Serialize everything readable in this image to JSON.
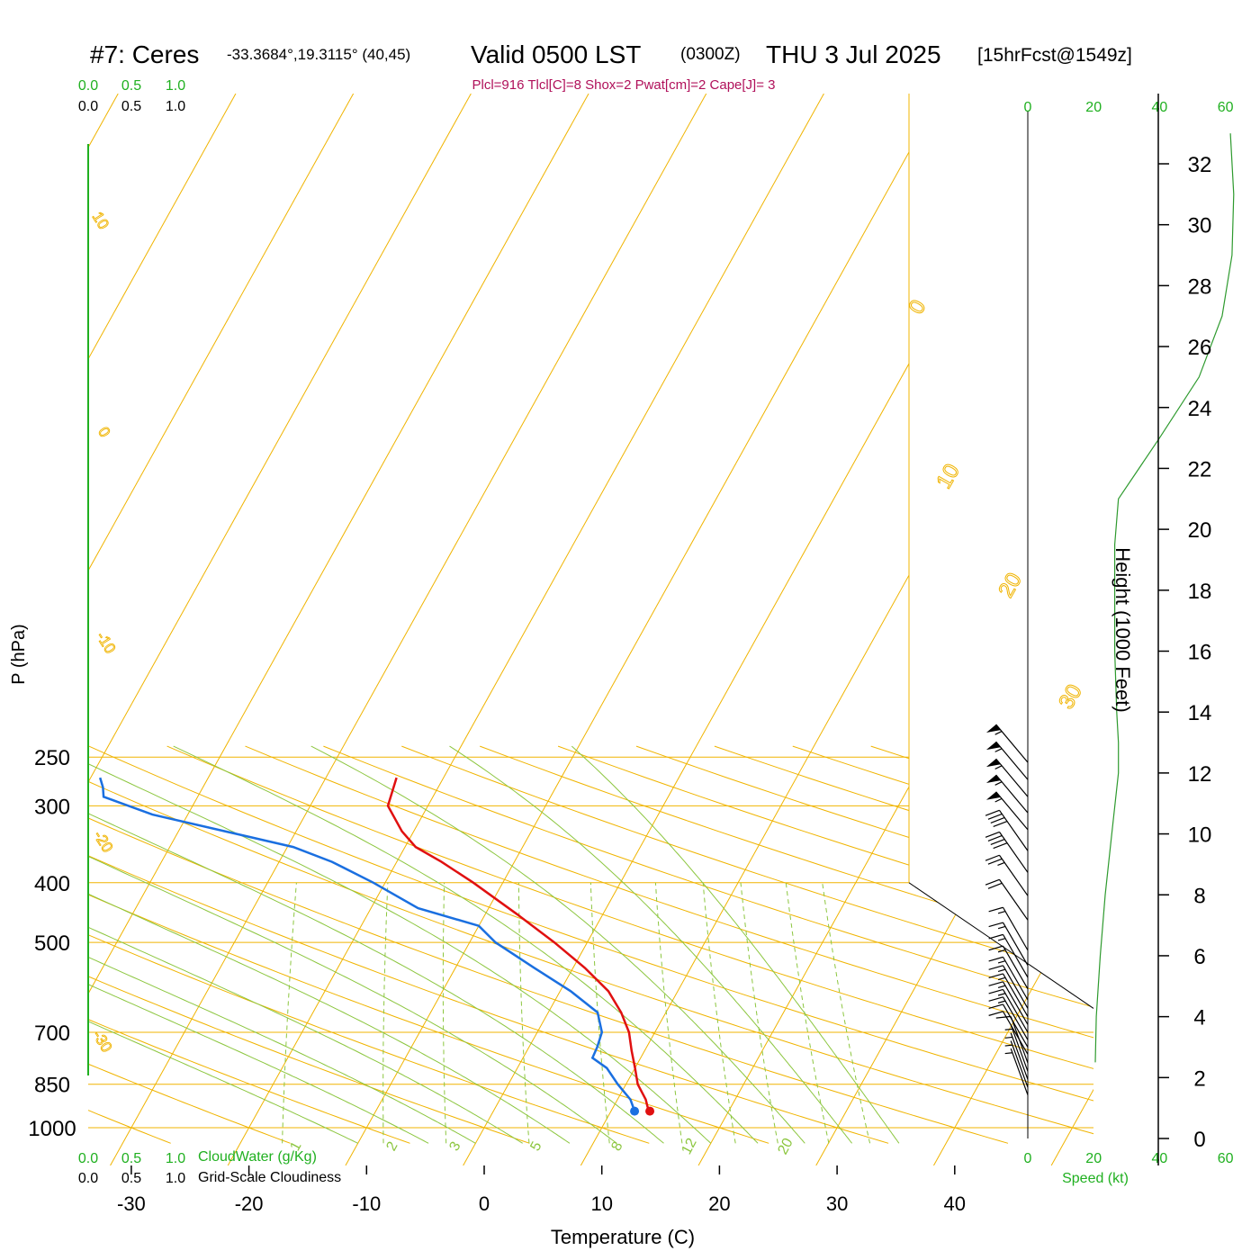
{
  "header": {
    "station": "#7: Ceres",
    "coords": "-33.3684°,19.3115° (40,45)",
    "valid": "Valid 0500 LST",
    "zulu": "(0300Z)",
    "date": "THU 3 Jul 2025",
    "forecast": "[15hrFcst@1549z]",
    "indices": "Plcl=916 Tlcl[C]=8 Shox=2 Pwat[cm]=2 Cape[J]= 3"
  },
  "colors": {
    "temperature": "#e01010",
    "dewpoint": "#1a6fe0",
    "isobar": "#f0b400",
    "isotherm": "#f0b400",
    "dry_adiabat": "#f0b400",
    "moist_adiabat": "#8cc63f",
    "mixing_ratio": "#8cc63f",
    "title_indices": "#b0105a",
    "green_text": "#20b020",
    "height_trace": "#2e9a2e"
  },
  "chart_data": {
    "type": "line",
    "title": "#7: Ceres  Valid 0500 LST (0300Z) THU 3 Jul 2025",
    "xlabel": "Temperature (C)",
    "ylabel": "P (hPa)",
    "right_axis_label": "Height (1000 Feet)",
    "x_ticks": [
      "-30",
      "-20",
      "-10",
      "0",
      "10",
      "20",
      "30",
      "40"
    ],
    "pressure_ticks": [
      "250",
      "300",
      "400",
      "500",
      "700",
      "850",
      "1000"
    ],
    "height_ticks": [
      "0",
      "2",
      "4",
      "6",
      "8",
      "10",
      "12",
      "14",
      "16",
      "18",
      "20",
      "22",
      "24",
      "26",
      "28",
      "30",
      "32"
    ],
    "isotherm_labels": [
      "0",
      "10",
      "20",
      "30"
    ],
    "dry_adiabat_labels": [
      "10",
      "0",
      "-10",
      "-20",
      "-30"
    ],
    "mixing_ratio_labels": [
      "1",
      "2",
      "3",
      "5",
      "8",
      "12",
      "20"
    ],
    "cloud_scale_top_green": [
      "0.0",
      "0.5",
      "1.0"
    ],
    "cloud_scale_top_black": [
      "0.0",
      "0.5",
      "1.0"
    ],
    "cloud_scale_bottom_green": [
      "0.0",
      "0.5",
      "1.0"
    ],
    "cloud_scale_bottom_black": [
      "0.0",
      "0.5",
      "1.0"
    ],
    "cloudwater_label": "CloudWater (g/Kg)",
    "cloudiness_label": "Grid-Scale Cloudiness",
    "speed_ticks_top": [
      "0",
      "20",
      "40",
      "60"
    ],
    "speed_ticks_bottom": [
      "0",
      "20",
      "40",
      "60"
    ],
    "speed_label": "Speed (kt)",
    "temperature_profile": [
      {
        "p": 940,
        "t": 13.3
      },
      {
        "p": 925,
        "t": 12.9
      },
      {
        "p": 900,
        "t": 12.4
      },
      {
        "p": 850,
        "t": 11.0
      },
      {
        "p": 800,
        "t": 10.0
      },
      {
        "p": 750,
        "t": 8.9
      },
      {
        "p": 700,
        "t": 7.8
      },
      {
        "p": 650,
        "t": 6.2
      },
      {
        "p": 600,
        "t": 4.1
      },
      {
        "p": 550,
        "t": 1.0
      },
      {
        "p": 500,
        "t": -2.8
      },
      {
        "p": 450,
        "t": -7.3
      },
      {
        "p": 400,
        "t": -12.5
      },
      {
        "p": 370,
        "t": -16.2
      },
      {
        "p": 350,
        "t": -19.1
      },
      {
        "p": 330,
        "t": -21.0
      },
      {
        "p": 300,
        "t": -23.4
      },
      {
        "p": 270,
        "t": -24.0
      }
    ],
    "dewpoint_profile": [
      {
        "p": 940,
        "t": 12.0
      },
      {
        "p": 900,
        "t": 11.1
      },
      {
        "p": 850,
        "t": 9.3
      },
      {
        "p": 800,
        "t": 7.6
      },
      {
        "p": 770,
        "t": 5.9
      },
      {
        "p": 740,
        "t": 5.8
      },
      {
        "p": 700,
        "t": 5.5
      },
      {
        "p": 650,
        "t": 4.2
      },
      {
        "p": 600,
        "t": 0.9
      },
      {
        "p": 550,
        "t": -3.3
      },
      {
        "p": 500,
        "t": -7.8
      },
      {
        "p": 470,
        "t": -10.0
      },
      {
        "p": 440,
        "t": -16.0
      },
      {
        "p": 400,
        "t": -21.0
      },
      {
        "p": 370,
        "t": -25.5
      },
      {
        "p": 350,
        "t": -29.5
      },
      {
        "p": 310,
        "t": -43.0
      },
      {
        "p": 290,
        "t": -48.0
      },
      {
        "p": 280,
        "t": -48.5
      },
      {
        "p": 270,
        "t": -49.2
      }
    ],
    "height_trace_kt": [
      {
        "h": 2.5,
        "s": 20.5
      },
      {
        "h": 4,
        "s": 20.8
      },
      {
        "h": 6,
        "s": 22
      },
      {
        "h": 8,
        "s": 23.5
      },
      {
        "h": 10,
        "s": 25.5
      },
      {
        "h": 12,
        "s": 27.5
      },
      {
        "h": 13,
        "s": 27.5
      },
      {
        "h": 14,
        "s": 27.0
      },
      {
        "h": 16,
        "s": 26.4
      },
      {
        "h": 18,
        "s": 26.4
      },
      {
        "h": 19.5,
        "s": 26.4
      },
      {
        "h": 21,
        "s": 27.5
      },
      {
        "h": 23,
        "s": 40
      },
      {
        "h": 25,
        "s": 52
      },
      {
        "h": 27,
        "s": 59
      },
      {
        "h": 29,
        "s": 62
      },
      {
        "h": 31,
        "s": 62.5
      },
      {
        "h": 33,
        "s": 61.5
      }
    ],
    "wind_barbs": [
      {
        "p": 255,
        "dir": 320,
        "kt": 55
      },
      {
        "p": 272,
        "dir": 320,
        "kt": 55
      },
      {
        "p": 290,
        "dir": 320,
        "kt": 55
      },
      {
        "p": 308,
        "dir": 320,
        "kt": 55
      },
      {
        "p": 328,
        "dir": 320,
        "kt": 55
      },
      {
        "p": 355,
        "dir": 325,
        "kt": 40
      },
      {
        "p": 385,
        "dir": 325,
        "kt": 40
      },
      {
        "p": 420,
        "dir": 325,
        "kt": 25
      },
      {
        "p": 460,
        "dir": 325,
        "kt": 20
      },
      {
        "p": 515,
        "dir": 330,
        "kt": 15
      },
      {
        "p": 545,
        "dir": 330,
        "kt": 15
      },
      {
        "p": 570,
        "dir": 330,
        "kt": 15
      },
      {
        "p": 595,
        "dir": 330,
        "kt": 15
      },
      {
        "p": 620,
        "dir": 330,
        "kt": 15
      },
      {
        "p": 640,
        "dir": 330,
        "kt": 15
      },
      {
        "p": 660,
        "dir": 330,
        "kt": 15
      },
      {
        "p": 680,
        "dir": 330,
        "kt": 15
      },
      {
        "p": 700,
        "dir": 330,
        "kt": 15
      },
      {
        "p": 720,
        "dir": 330,
        "kt": 15
      },
      {
        "p": 740,
        "dir": 330,
        "kt": 10
      },
      {
        "p": 760,
        "dir": 330,
        "kt": 10
      },
      {
        "p": 785,
        "dir": 340,
        "kt": 10
      },
      {
        "p": 810,
        "dir": 340,
        "kt": 5
      },
      {
        "p": 835,
        "dir": 340,
        "kt": 5
      },
      {
        "p": 860,
        "dir": 340,
        "kt": 5
      },
      {
        "p": 885,
        "dir": 340,
        "kt": 5
      }
    ]
  }
}
